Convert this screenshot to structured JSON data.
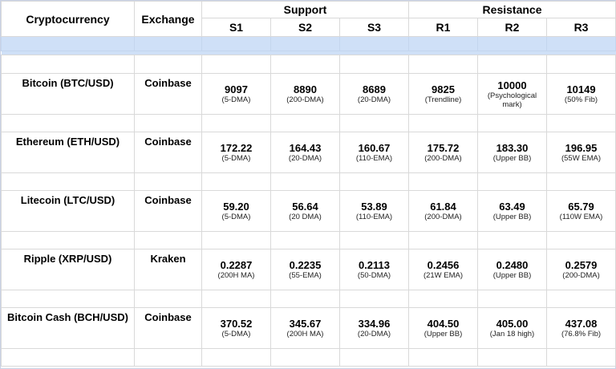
{
  "header": {
    "cryptocurrency": "Cryptocurrency",
    "exchange": "Exchange",
    "support": "Support",
    "resistance": "Resistance",
    "levels": [
      "S1",
      "S2",
      "S3",
      "R1",
      "R2",
      "R3"
    ]
  },
  "rows": [
    {
      "name": "Bitcoin (BTC/USD)",
      "exchange": "Coinbase",
      "levels": [
        {
          "value": "9097",
          "note": "(5-DMA)"
        },
        {
          "value": "8890",
          "note": "(200-DMA)"
        },
        {
          "value": "8689",
          "note": "(20-DMA)"
        },
        {
          "value": "9825",
          "note": "(Trendline)"
        },
        {
          "value": "10000",
          "note": "(Psychological mark)"
        },
        {
          "value": "10149",
          "note": "(50% Fib)"
        }
      ]
    },
    {
      "name": "Ethereum (ETH/USD)",
      "exchange": "Coinbase",
      "levels": [
        {
          "value": "172.22",
          "note": "(5-DMA)"
        },
        {
          "value": "164.43",
          "note": "(20-DMA)"
        },
        {
          "value": "160.67",
          "note": "(110-EMA)"
        },
        {
          "value": "175.72",
          "note": "(200-DMA)"
        },
        {
          "value": "183.30",
          "note": "(Upper BB)"
        },
        {
          "value": "196.95",
          "note": "(55W EMA)"
        }
      ]
    },
    {
      "name": "Litecoin (LTC/USD)",
      "exchange": "Coinbase",
      "levels": [
        {
          "value": "59.20",
          "note": "(5-DMA)"
        },
        {
          "value": "56.64",
          "note": "(20 DMA)"
        },
        {
          "value": "53.89",
          "note": "(110-EMA)"
        },
        {
          "value": "61.84",
          "note": "(200-DMA)"
        },
        {
          "value": "63.49",
          "note": "(Upper BB)"
        },
        {
          "value": "65.79",
          "note": "(110W EMA)"
        }
      ]
    },
    {
      "name": "Ripple (XRP/USD)",
      "exchange": "Kraken",
      "levels": [
        {
          "value": "0.2287",
          "note": "(200H MA)"
        },
        {
          "value": "0.2235",
          "note": "(55-EMA)"
        },
        {
          "value": "0.2113",
          "note": "(50-DMA)"
        },
        {
          "value": "0.2456",
          "note": "(21W EMA)"
        },
        {
          "value": "0.2480",
          "note": "(Upper BB)"
        },
        {
          "value": "0.2579",
          "note": "(200-DMA)"
        }
      ]
    },
    {
      "name": "Bitcoin Cash (BCH/USD)",
      "exchange": "Coinbase",
      "levels": [
        {
          "value": "370.52",
          "note": "(5-DMA)"
        },
        {
          "value": "345.67",
          "note": "(200H MA)"
        },
        {
          "value": "334.96",
          "note": "(20-DMA)"
        },
        {
          "value": "404.50",
          "note": "(Upper BB)"
        },
        {
          "value": "405.00",
          "note": "(Jan 18 high)"
        },
        {
          "value": "437.08",
          "note": "(76.8% Fib)"
        }
      ]
    }
  ]
}
